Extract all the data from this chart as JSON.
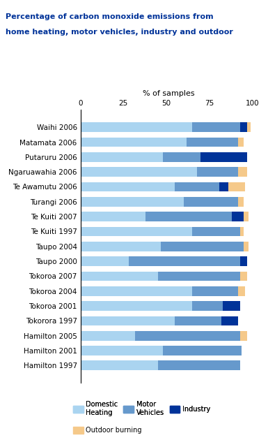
{
  "title_line1": "Percentage of carbon monoxide emissions from",
  "title_line2": "home heating, motor vehicles, industry and outdoor",
  "xlabel": "% of samples",
  "categories": [
    "Waihi 2006",
    "Matamata 2006",
    "Putaruru 2006",
    "Ngaruawahia 2006",
    "Te Awamutu 2006",
    "Turangi 2006",
    "Te Kuiti 2007",
    "Te Kuiti 1997",
    "Taupo 2004",
    "Taupo 2000",
    "Tokoroa 2007",
    "Tokoroa 2004",
    "Tokoroa 2001",
    "Tokorora 1997",
    "Hamilton 2005",
    "Hamilton 2001",
    "Hamilton 1997"
  ],
  "domestic_heating": [
    65,
    62,
    48,
    68,
    55,
    60,
    38,
    65,
    47,
    28,
    45,
    65,
    65,
    55,
    32,
    48,
    45
  ],
  "motor_vehicles": [
    28,
    30,
    22,
    24,
    26,
    32,
    50,
    28,
    48,
    65,
    48,
    27,
    18,
    27,
    61,
    46,
    48
  ],
  "industry": [
    4,
    0,
    27,
    0,
    5,
    0,
    7,
    0,
    0,
    4,
    0,
    0,
    10,
    10,
    0,
    0,
    0
  ],
  "outdoor_burning": [
    2,
    3,
    0,
    5,
    10,
    3,
    3,
    2,
    3,
    0,
    4,
    4,
    0,
    0,
    4,
    0,
    0
  ],
  "color_domestic": "#aad4f0",
  "color_motor": "#6699cc",
  "color_industry": "#003399",
  "color_outdoor": "#f5c98a",
  "title_color": "#003399",
  "xlim": [
    0,
    103
  ],
  "xticks": [
    0,
    25,
    50,
    75,
    100
  ]
}
